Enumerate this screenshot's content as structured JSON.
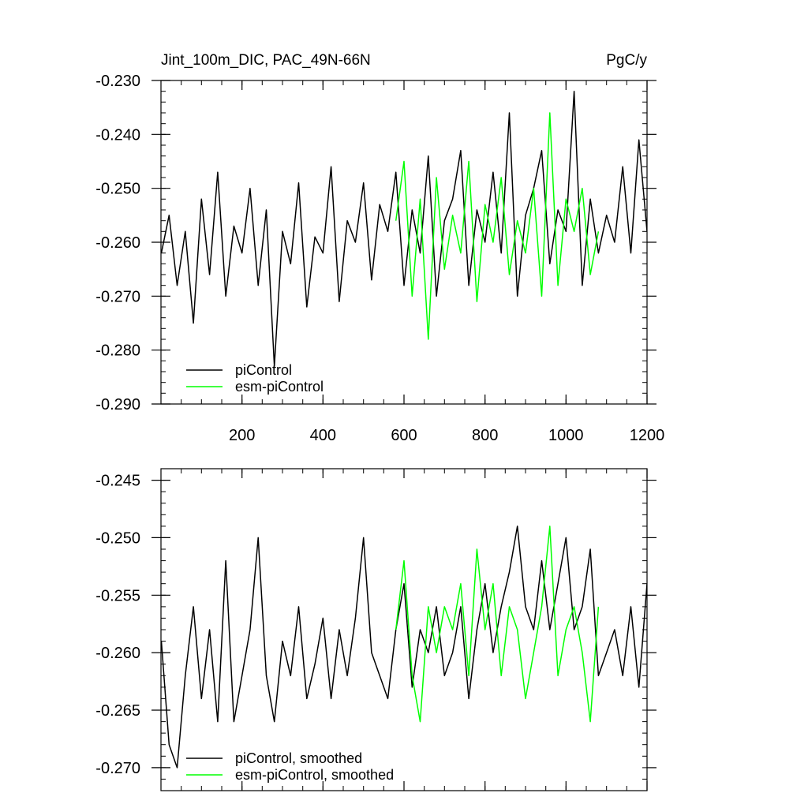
{
  "figure": {
    "title_left": "Jint_100m_DIC, PAC_49N-66N",
    "title_right": "PgC/y"
  },
  "legend_top": [
    {
      "label": "piControl",
      "color": "#000000"
    },
    {
      "label": "esm-piControl",
      "color": "#00ff00"
    }
  ],
  "legend_bottom": [
    {
      "label": "piControl, smoothed",
      "color": "#000000"
    },
    {
      "label": "esm-piControl, smoothed",
      "color": "#00ff00"
    }
  ],
  "chart_data": [
    {
      "type": "line",
      "title": "Jint_100m_DIC, PAC_49N-66N",
      "units": "PgC/y",
      "xlim": [
        0,
        1200
      ],
      "ylim": [
        -0.29,
        -0.23
      ],
      "xticks": [
        200,
        400,
        600,
        800,
        1000,
        1200
      ],
      "xtick_labels": [
        "200",
        "400",
        "600",
        "800",
        "1000",
        "1200"
      ],
      "yticks": [
        -0.29,
        -0.28,
        -0.27,
        -0.26,
        -0.25,
        -0.24,
        -0.23
      ],
      "ytick_labels": [
        "-0.290",
        "-0.280",
        "-0.270",
        "-0.260",
        "-0.250",
        "-0.240",
        "-0.230"
      ],
      "legend_position": "bottom-left",
      "grid": false,
      "series": [
        {
          "name": "piControl",
          "color": "#000000",
          "x": [
            1,
            20,
            40,
            60,
            80,
            100,
            120,
            140,
            160,
            180,
            200,
            220,
            240,
            260,
            280,
            300,
            320,
            340,
            360,
            380,
            400,
            420,
            440,
            460,
            480,
            500,
            520,
            540,
            560,
            580,
            600,
            620,
            640,
            660,
            680,
            700,
            720,
            740,
            760,
            780,
            800,
            820,
            840,
            860,
            880,
            900,
            920,
            940,
            960,
            980,
            1000,
            1020,
            1040,
            1060,
            1080,
            1100,
            1120,
            1140,
            1160,
            1180,
            1200
          ],
          "y": [
            -0.262,
            -0.255,
            -0.268,
            -0.258,
            -0.275,
            -0.252,
            -0.266,
            -0.247,
            -0.27,
            -0.257,
            -0.262,
            -0.25,
            -0.268,
            -0.254,
            -0.283,
            -0.258,
            -0.264,
            -0.249,
            -0.272,
            -0.259,
            -0.262,
            -0.246,
            -0.271,
            -0.256,
            -0.26,
            -0.249,
            -0.267,
            -0.253,
            -0.258,
            -0.247,
            -0.268,
            -0.254,
            -0.262,
            -0.244,
            -0.27,
            -0.256,
            -0.252,
            -0.243,
            -0.268,
            -0.254,
            -0.26,
            -0.247,
            -0.262,
            -0.236,
            -0.27,
            -0.255,
            -0.25,
            -0.243,
            -0.264,
            -0.254,
            -0.258,
            -0.232,
            -0.268,
            -0.252,
            -0.262,
            -0.255,
            -0.26,
            -0.246,
            -0.262,
            -0.241,
            -0.258
          ]
        },
        {
          "name": "esm-piControl",
          "color": "#00ff00",
          "x": [
            580,
            600,
            620,
            640,
            660,
            680,
            700,
            720,
            740,
            760,
            780,
            800,
            820,
            840,
            860,
            880,
            900,
            920,
            940,
            960,
            980,
            1000,
            1020,
            1040,
            1060,
            1080
          ],
          "y": [
            -0.256,
            -0.245,
            -0.27,
            -0.252,
            -0.278,
            -0.248,
            -0.265,
            -0.255,
            -0.262,
            -0.245,
            -0.271,
            -0.253,
            -0.26,
            -0.248,
            -0.266,
            -0.256,
            -0.262,
            -0.25,
            -0.27,
            -0.236,
            -0.268,
            -0.252,
            -0.258,
            -0.25,
            -0.266,
            -0.258
          ]
        }
      ]
    },
    {
      "type": "line",
      "xlim": [
        0,
        1200
      ],
      "ylim": [
        -0.272,
        -0.244
      ],
      "yticks": [
        -0.27,
        -0.265,
        -0.26,
        -0.255,
        -0.25,
        -0.245
      ],
      "ytick_labels": [
        "-0.270",
        "-0.265",
        "-0.260",
        "-0.255",
        "-0.250",
        "-0.245"
      ],
      "legend_position": "bottom-left",
      "grid": false,
      "series": [
        {
          "name": "piControl, smoothed",
          "color": "#000000",
          "x": [
            1,
            20,
            40,
            60,
            80,
            100,
            120,
            140,
            160,
            180,
            200,
            220,
            240,
            260,
            280,
            300,
            320,
            340,
            360,
            380,
            400,
            420,
            440,
            460,
            480,
            500,
            520,
            540,
            560,
            580,
            600,
            620,
            640,
            660,
            680,
            700,
            720,
            740,
            760,
            780,
            800,
            820,
            840,
            860,
            880,
            900,
            920,
            940,
            960,
            980,
            1000,
            1020,
            1040,
            1060,
            1080,
            1100,
            1120,
            1140,
            1160,
            1180,
            1200
          ],
          "y": [
            -0.259,
            -0.268,
            -0.27,
            -0.262,
            -0.256,
            -0.264,
            -0.258,
            -0.266,
            -0.252,
            -0.266,
            -0.262,
            -0.258,
            -0.25,
            -0.262,
            -0.266,
            -0.259,
            -0.262,
            -0.256,
            -0.264,
            -0.261,
            -0.257,
            -0.264,
            -0.258,
            -0.262,
            -0.257,
            -0.25,
            -0.26,
            -0.262,
            -0.264,
            -0.258,
            -0.254,
            -0.263,
            -0.258,
            -0.26,
            -0.256,
            -0.262,
            -0.26,
            -0.256,
            -0.264,
            -0.258,
            -0.254,
            -0.26,
            -0.256,
            -0.253,
            -0.249,
            -0.256,
            -0.258,
            -0.252,
            -0.258,
            -0.254,
            -0.25,
            -0.258,
            -0.256,
            -0.251,
            -0.262,
            -0.26,
            -0.258,
            -0.262,
            -0.256,
            -0.263,
            -0.254
          ]
        },
        {
          "name": "esm-piControl, smoothed",
          "color": "#00ff00",
          "x": [
            580,
            600,
            620,
            640,
            660,
            680,
            700,
            720,
            740,
            760,
            780,
            800,
            820,
            840,
            860,
            880,
            900,
            920,
            940,
            960,
            980,
            1000,
            1020,
            1040,
            1060,
            1080
          ],
          "y": [
            -0.258,
            -0.252,
            -0.262,
            -0.266,
            -0.256,
            -0.26,
            -0.256,
            -0.258,
            -0.254,
            -0.262,
            -0.251,
            -0.258,
            -0.254,
            -0.262,
            -0.256,
            -0.258,
            -0.264,
            -0.26,
            -0.256,
            -0.249,
            -0.262,
            -0.258,
            -0.256,
            -0.26,
            -0.266,
            -0.256
          ]
        }
      ]
    }
  ]
}
